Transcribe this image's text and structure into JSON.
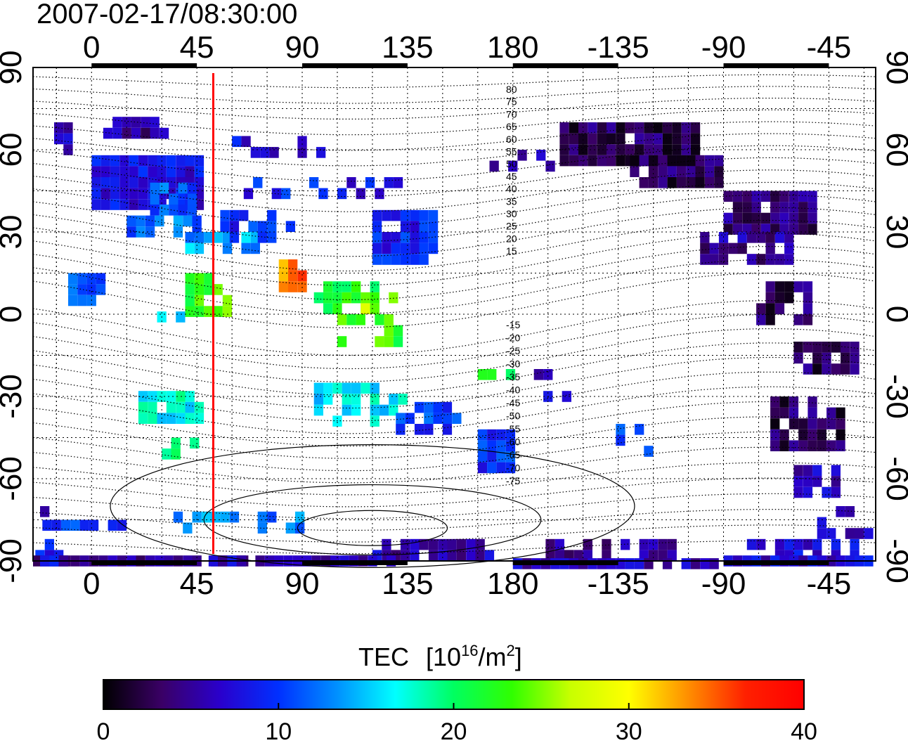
{
  "title": "2007-02-17/08:30:00",
  "map": {
    "lon_ticks": [
      "0",
      "45",
      "90",
      "135",
      "180",
      "-135",
      "-90",
      "-45"
    ],
    "lat_ticks": [
      "90",
      "60",
      "30",
      "0",
      "-30",
      "-60",
      "-90"
    ],
    "contour_labels_north": [
      "80",
      "75",
      "70",
      "65",
      "60",
      "55",
      "50",
      "45",
      "40",
      "35",
      "30",
      "25",
      "20",
      "15"
    ],
    "contour_labels_south": [
      "-15",
      "-20",
      "-25",
      "-30",
      "-35",
      "-40",
      "-45",
      "-50",
      "-55",
      "-60",
      "-65",
      "-70",
      "-75"
    ],
    "vertical_marker_lon": 52,
    "marker_color": "#ff0000"
  },
  "colorbar": {
    "label_main": "TEC",
    "label_unit_open": "[10",
    "label_unit_exp": "16",
    "label_unit_mid": "/m",
    "label_unit_exp2": "2",
    "label_unit_close": "]",
    "ticks": [
      "0",
      "10",
      "20",
      "30",
      "40"
    ],
    "min": 0,
    "max": 40,
    "colors": [
      "#000000",
      "#3a0066",
      "#2a00cc",
      "#0030ff",
      "#0090ff",
      "#00ffff",
      "#00ff60",
      "#30ff00",
      "#c8ff00",
      "#ffff00",
      "#ff9000",
      "#ff2000",
      "#ff0000"
    ]
  }
}
